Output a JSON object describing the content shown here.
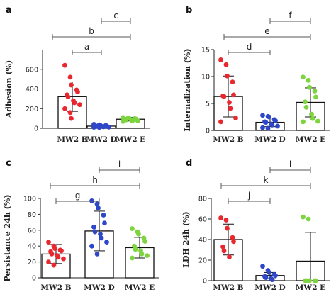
{
  "chart_data": [
    {
      "type": "bar",
      "panel_label": "a",
      "ylabel": "Adhesion (%)",
      "categories": [
        "MW2 B",
        "MW2 D",
        "MW2 E"
      ],
      "ylim": [
        0,
        800
      ],
      "yticks": [
        "0",
        "200",
        "400",
        "600"
      ],
      "bars": [
        322,
        22,
        92
      ],
      "sd": [
        150,
        12,
        18
      ],
      "colors": [
        "#e8282e",
        "#2e47c8",
        "#7ed43f"
      ],
      "points": [
        [
          640,
          520,
          440,
          390,
          370,
          340,
          320,
          280,
          260,
          240,
          200,
          160,
          100
        ],
        [
          40,
          35,
          30,
          28,
          25,
          22,
          20,
          18,
          15,
          12,
          10,
          8
        ],
        [
          110,
          105,
          100,
          98,
          95,
          90,
          85,
          80,
          78,
          75,
          70
        ]
      ],
      "brackets": [
        {
          "label": "a",
          "from": 0,
          "to": 1
        },
        {
          "label": "b",
          "from": 0,
          "to": 2
        },
        {
          "label": "c",
          "from": 1,
          "to": 2
        }
      ]
    },
    {
      "type": "bar",
      "panel_label": "b",
      "ylabel": "Internalization (%)",
      "categories": [
        "MW2 B",
        "MW2 D",
        "MW2 E"
      ],
      "ylim": [
        0,
        15
      ],
      "yticks": [
        "0",
        "5",
        "10",
        "15"
      ],
      "bars": [
        6.3,
        1.5,
        5.2
      ],
      "sd": [
        3.8,
        0.8,
        2.7
      ],
      "colors": [
        "#e8282e",
        "#2e47c8",
        "#7ed43f"
      ],
      "points": [
        [
          13.1,
          12.2,
          10.1,
          9.0,
          6.6,
          6.4,
          6.3,
          5.2,
          4.1,
          2.3,
          1.6
        ],
        [
          2.8,
          2.6,
          2.5,
          2.0,
          1.8,
          1.6,
          1.5,
          1.2,
          1.0,
          0.8,
          0.5,
          0.4
        ],
        [
          9.9,
          9.3,
          8.0,
          7.3,
          6.2,
          5.3,
          4.3,
          3.0,
          2.2,
          1.7,
          1.6
        ]
      ],
      "brackets": [
        {
          "label": "d",
          "from": 0,
          "to": 1
        },
        {
          "label": "e",
          "from": 0,
          "to": 2
        },
        {
          "label": "f",
          "from": 1,
          "to": 2
        }
      ]
    },
    {
      "type": "bar",
      "panel_label": "c",
      "ylabel": "Persistance 24h (%)",
      "categories": [
        "MW2 B",
        "MW2 D",
        "MW2 E"
      ],
      "ylim": [
        0,
        100
      ],
      "yticks": [
        "0",
        "20",
        "40",
        "60",
        "80",
        "100"
      ],
      "bars": [
        30,
        59,
        38
      ],
      "sd": [
        12,
        25,
        13
      ],
      "colors": [
        "#e8282e",
        "#2e47c8",
        "#7ed43f"
      ],
      "points": [
        [
          45,
          40,
          37,
          35,
          34,
          33,
          30,
          28,
          26,
          24,
          20,
          16
        ],
        [
          97,
          93,
          88,
          79,
          69,
          64,
          58,
          55,
          50,
          45,
          40,
          30
        ],
        [
          62,
          58,
          55,
          50,
          46,
          40,
          36,
          34,
          30,
          28,
          25
        ]
      ],
      "brackets": [
        {
          "label": "g",
          "from": 0,
          "to": 1
        },
        {
          "label": "h",
          "from": 0,
          "to": 2
        },
        {
          "label": "i",
          "from": 1,
          "to": 2
        }
      ]
    },
    {
      "type": "bar",
      "panel_label": "d",
      "ylabel": "LDH 24h (%)",
      "categories": [
        "MW2 B",
        "MW2 D",
        "MW2 E"
      ],
      "ylim": [
        0,
        80
      ],
      "yticks": [
        "0",
        "20",
        "40",
        "60",
        "80"
      ],
      "bars": [
        40,
        5,
        19
      ],
      "sd": [
        15,
        3,
        28
      ],
      "colors": [
        "#e8282e",
        "#2e47c8",
        "#7ed43f"
      ],
      "points": [
        [
          61,
          59,
          51,
          42,
          38,
          33,
          29,
          23
        ],
        [
          14,
          10,
          8,
          6,
          5,
          4,
          3,
          2,
          1
        ],
        [
          62,
          60,
          0,
          0,
          0,
          0,
          0
        ]
      ],
      "brackets": [
        {
          "label": "j",
          "from": 0,
          "to": 1
        },
        {
          "label": "k",
          "from": 0,
          "to": 2
        },
        {
          "label": "l",
          "from": 1,
          "to": 2
        }
      ]
    }
  ]
}
